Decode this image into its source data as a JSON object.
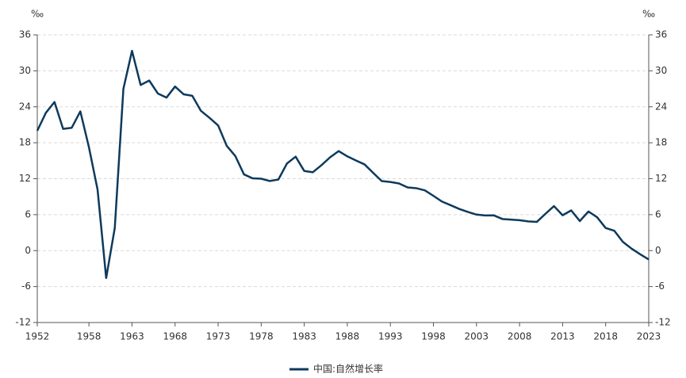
{
  "chart_data": {
    "type": "line",
    "y_unit": "‰",
    "y2_unit": "‰",
    "x": [
      1952,
      1953,
      1954,
      1955,
      1956,
      1957,
      1958,
      1959,
      1960,
      1961,
      1962,
      1963,
      1964,
      1965,
      1966,
      1967,
      1968,
      1969,
      1970,
      1971,
      1972,
      1973,
      1974,
      1975,
      1976,
      1977,
      1978,
      1979,
      1980,
      1981,
      1982,
      1983,
      1984,
      1985,
      1986,
      1987,
      1988,
      1989,
      1990,
      1991,
      1992,
      1993,
      1994,
      1995,
      1996,
      1997,
      1998,
      1999,
      2000,
      2001,
      2002,
      2003,
      2004,
      2005,
      2006,
      2007,
      2008,
      2009,
      2010,
      2011,
      2012,
      2013,
      2014,
      2015,
      2016,
      2017,
      2018,
      2019,
      2020,
      2021,
      2022,
      2023
    ],
    "series": [
      {
        "name": "中国:自然增长率",
        "color": "#0d3a5c",
        "values": [
          20.0,
          23.0,
          24.79,
          20.32,
          20.5,
          23.23,
          17.24,
          10.19,
          -4.57,
          3.78,
          26.99,
          33.33,
          27.64,
          28.38,
          26.22,
          25.53,
          27.38,
          26.08,
          25.83,
          23.33,
          22.16,
          20.89,
          17.48,
          15.77,
          12.72,
          12.06,
          12.0,
          11.61,
          11.87,
          14.55,
          15.68,
          13.29,
          13.08,
          14.26,
          15.57,
          16.61,
          15.73,
          15.04,
          14.39,
          12.98,
          11.6,
          11.45,
          11.21,
          10.55,
          10.42,
          10.06,
          9.14,
          8.18,
          7.58,
          6.95,
          6.45,
          6.01,
          5.87,
          5.89,
          5.28,
          5.17,
          5.08,
          4.87,
          4.79,
          6.13,
          7.43,
          5.9,
          6.71,
          4.93,
          6.53,
          5.58,
          3.78,
          3.32,
          1.45,
          0.34,
          -0.6,
          -1.48
        ]
      }
    ],
    "xlim": [
      1952,
      2023
    ],
    "xticks": [
      1952,
      1958,
      1963,
      1968,
      1973,
      1978,
      1983,
      1988,
      1993,
      1998,
      2003,
      2008,
      2013,
      2018,
      2023
    ],
    "ylim": [
      -12,
      36
    ],
    "yticks": [
      -12,
      -6,
      0,
      6,
      12,
      18,
      24,
      30,
      36
    ],
    "y2lim": [
      -12,
      36
    ],
    "y2ticks": [
      -12,
      -6,
      0,
      6,
      12,
      18,
      24,
      30,
      36
    ],
    "grid": true
  }
}
